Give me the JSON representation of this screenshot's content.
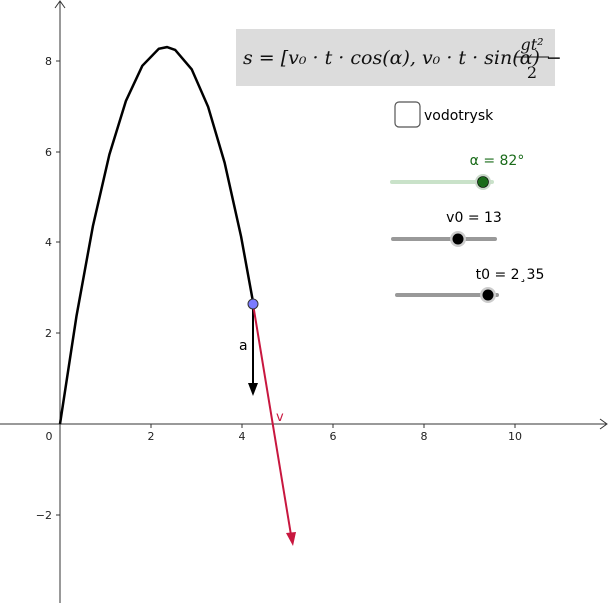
{
  "axes": {
    "x_ticks": [
      "0",
      "2",
      "4",
      "6",
      "8",
      "10"
    ],
    "y_ticks": [
      "8",
      "6",
      "4",
      "2",
      "−2"
    ]
  },
  "formula": {
    "text": "s = [v₀ · t · cos(α), v₀ · t · sin(α) −",
    "numerator": "gt²",
    "denominator": "2"
  },
  "checkbox": {
    "label": "vodotrysk"
  },
  "sliders": [
    {
      "label": "α = 82°"
    },
    {
      "label": "v0 = 13"
    },
    {
      "label": "t0 = 2¸35"
    }
  ],
  "vectors": {
    "a": "a",
    "v": "v"
  }
}
